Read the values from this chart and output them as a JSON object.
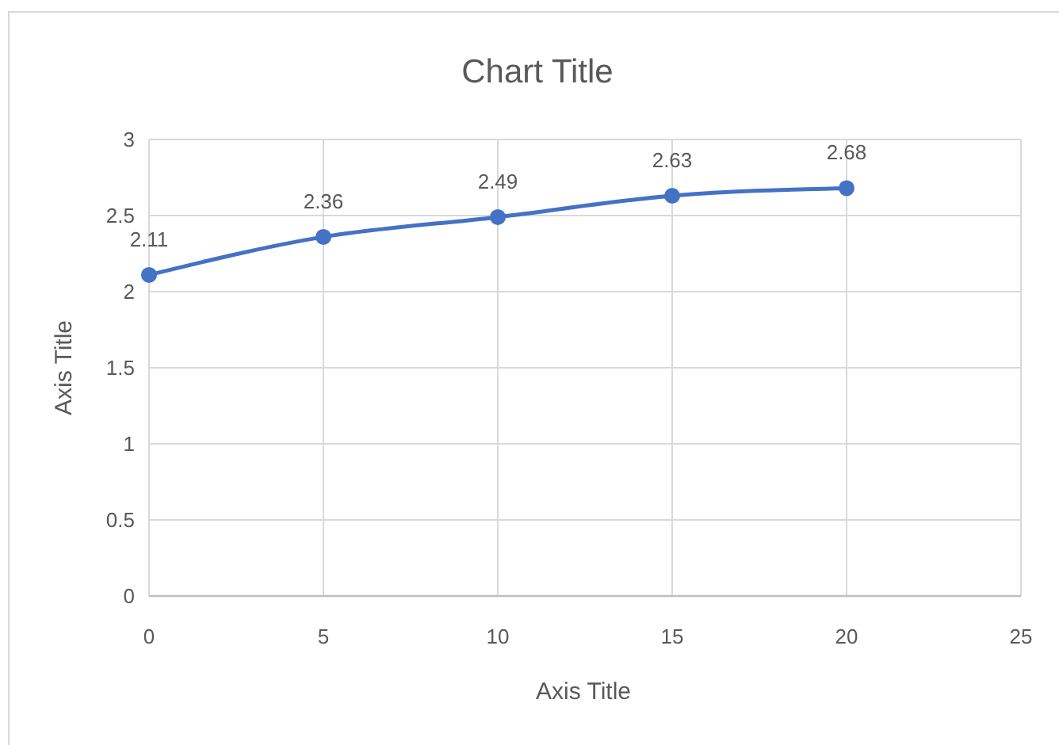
{
  "chart_data": {
    "type": "line",
    "title": "Chart Title",
    "xlabel": "Axis Title",
    "ylabel": "Axis Title",
    "x": [
      0,
      5,
      10,
      15,
      20
    ],
    "series": [
      {
        "color": "#4472c4",
        "values": [
          2.11,
          2.36,
          2.49,
          2.63,
          2.68
        ]
      }
    ],
    "xlim": [
      0,
      25
    ],
    "xticks": [
      0,
      5,
      10,
      15,
      20,
      25
    ],
    "ylim": [
      0,
      3
    ],
    "yticks": [
      0,
      0.5,
      1,
      1.5,
      2,
      2.5,
      3
    ],
    "grid": true,
    "marker": "circle",
    "line_style": "solid",
    "data_labels": true
  }
}
